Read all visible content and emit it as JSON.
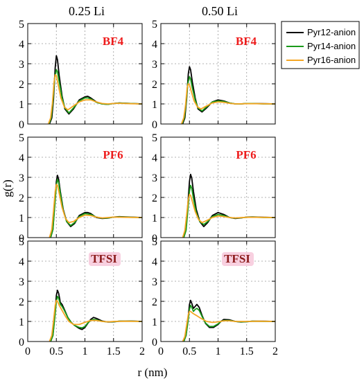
{
  "colors": {
    "Pyr12-anion": "#000000",
    "Pyr14-anion": "#1a9a1a",
    "Pyr16-anion": "#f5a623",
    "tag_red": "#ee1c1c",
    "tag_tfsi": "#8b1a1a",
    "tag_tfsi_bg": "#f8d0e0"
  },
  "chart_data": {
    "type": "line",
    "columns": [
      "0.25 Li",
      "0.50 Li"
    ],
    "ylabel": "g(r)",
    "xlabel": "r (nm)",
    "xlim": [
      0,
      2
    ],
    "ylim": [
      0,
      5
    ],
    "xticks": [
      0,
      0.5,
      1,
      1.5,
      2
    ],
    "xtick_labels": [
      "0",
      "0.5",
      "1",
      "1.5",
      "2"
    ],
    "yticks": [
      0,
      1,
      2,
      3,
      4,
      5
    ],
    "ytick_labels": [
      "0",
      "1",
      "2",
      "3",
      "4",
      "5"
    ],
    "grid": true,
    "legend_position": "top-right",
    "legend": [
      "Pyr12-anion",
      "Pyr14-anion",
      "Pyr16-anion"
    ],
    "panels": [
      {
        "row": 0,
        "col": 0,
        "label": "BF4",
        "series": [
          {
            "name": "Pyr12-anion",
            "x": [
              0.38,
              0.42,
              0.45,
              0.48,
              0.5,
              0.52,
              0.55,
              0.6,
              0.65,
              0.72,
              0.8,
              0.9,
              1.0,
              1.05,
              1.1,
              1.2,
              1.3,
              1.4,
              1.5,
              1.6,
              1.8,
              2.0
            ],
            "y": [
              0,
              0.3,
              1.2,
              2.8,
              3.4,
              3.2,
              2.4,
              1.4,
              0.75,
              0.5,
              0.75,
              1.2,
              1.35,
              1.38,
              1.3,
              1.1,
              1.0,
              0.98,
              1.02,
              1.05,
              1.02,
              1.0
            ]
          },
          {
            "name": "Pyr14-anion",
            "x": [
              0.37,
              0.41,
              0.44,
              0.47,
              0.5,
              0.52,
              0.55,
              0.6,
              0.65,
              0.72,
              0.8,
              0.9,
              1.0,
              1.05,
              1.1,
              1.2,
              1.3,
              1.4,
              1.5,
              1.6,
              1.8,
              2.0
            ],
            "y": [
              0,
              0.3,
              1.1,
              2.3,
              2.7,
              2.6,
              2.1,
              1.3,
              0.8,
              0.55,
              0.8,
              1.15,
              1.3,
              1.3,
              1.25,
              1.08,
              1.0,
              0.98,
              1.02,
              1.04,
              1.02,
              1.0
            ]
          },
          {
            "name": "Pyr16-anion",
            "x": [
              0.36,
              0.4,
              0.43,
              0.46,
              0.48,
              0.5,
              0.53,
              0.58,
              0.64,
              0.7,
              0.8,
              0.9,
              1.0,
              1.1,
              1.2,
              1.3,
              1.4,
              1.5,
              1.6,
              1.8,
              2.0
            ],
            "y": [
              0,
              0.3,
              1.0,
              2.1,
              2.45,
              2.4,
              2.0,
              1.3,
              0.85,
              0.7,
              0.9,
              1.1,
              1.2,
              1.2,
              1.1,
              1.02,
              1.0,
              1.02,
              1.03,
              1.01,
              1.0
            ]
          }
        ]
      },
      {
        "row": 0,
        "col": 1,
        "label": "BF4",
        "series": [
          {
            "name": "Pyr12-anion",
            "x": [
              0.38,
              0.42,
              0.45,
              0.48,
              0.5,
              0.52,
              0.55,
              0.6,
              0.65,
              0.72,
              0.8,
              0.9,
              1.0,
              1.1,
              1.2,
              1.3,
              1.4,
              1.5,
              1.6,
              1.8,
              2.0
            ],
            "y": [
              0,
              0.3,
              1.2,
              2.5,
              2.85,
              2.7,
              2.1,
              1.3,
              0.75,
              0.6,
              0.8,
              1.1,
              1.2,
              1.15,
              1.05,
              1.0,
              1.0,
              1.02,
              1.02,
              1.01,
              1.0
            ]
          },
          {
            "name": "Pyr14-anion",
            "x": [
              0.37,
              0.41,
              0.44,
              0.47,
              0.5,
              0.52,
              0.55,
              0.6,
              0.65,
              0.72,
              0.8,
              0.9,
              1.0,
              1.1,
              1.2,
              1.3,
              1.4,
              1.5,
              1.6,
              1.8,
              2.0
            ],
            "y": [
              0,
              0.3,
              1.0,
              2.0,
              2.35,
              2.25,
              1.8,
              1.2,
              0.8,
              0.65,
              0.85,
              1.1,
              1.15,
              1.12,
              1.05,
              1.0,
              1.0,
              1.02,
              1.02,
              1.0,
              1.0
            ]
          },
          {
            "name": "Pyr16-anion",
            "x": [
              0.36,
              0.4,
              0.43,
              0.46,
              0.48,
              0.5,
              0.53,
              0.58,
              0.64,
              0.7,
              0.8,
              0.9,
              1.0,
              1.1,
              1.2,
              1.3,
              1.5,
              1.7,
              2.0
            ],
            "y": [
              0,
              0.3,
              0.9,
              1.8,
              2.0,
              1.95,
              1.65,
              1.15,
              0.85,
              0.75,
              0.9,
              1.05,
              1.1,
              1.08,
              1.03,
              1.0,
              1.01,
              1.01,
              1.0
            ]
          }
        ]
      },
      {
        "row": 1,
        "col": 0,
        "label": "PF6",
        "series": [
          {
            "name": "Pyr12-anion",
            "x": [
              0.4,
              0.44,
              0.47,
              0.5,
              0.52,
              0.54,
              0.57,
              0.62,
              0.68,
              0.75,
              0.82,
              0.9,
              1.0,
              1.05,
              1.1,
              1.2,
              1.3,
              1.4,
              1.5,
              1.6,
              1.8,
              2.0
            ],
            "y": [
              0,
              0.4,
              1.6,
              2.8,
              3.1,
              2.9,
              2.3,
              1.4,
              0.8,
              0.55,
              0.7,
              1.1,
              1.25,
              1.25,
              1.2,
              1.0,
              0.95,
              0.97,
              1.02,
              1.04,
              1.02,
              1.0
            ]
          },
          {
            "name": "Pyr14-anion",
            "x": [
              0.4,
              0.44,
              0.47,
              0.5,
              0.52,
              0.54,
              0.57,
              0.62,
              0.68,
              0.75,
              0.82,
              0.9,
              1.0,
              1.1,
              1.2,
              1.3,
              1.4,
              1.5,
              1.6,
              1.8,
              2.0
            ],
            "y": [
              0,
              0.4,
              1.5,
              2.6,
              2.9,
              2.75,
              2.2,
              1.35,
              0.8,
              0.6,
              0.75,
              1.05,
              1.2,
              1.15,
              1.02,
              0.97,
              0.98,
              1.02,
              1.03,
              1.01,
              1.0
            ]
          },
          {
            "name": "Pyr16-anion",
            "x": [
              0.38,
              0.42,
              0.45,
              0.48,
              0.5,
              0.52,
              0.55,
              0.6,
              0.66,
              0.72,
              0.8,
              0.9,
              1.0,
              1.1,
              1.2,
              1.3,
              1.4,
              1.5,
              1.7,
              2.0
            ],
            "y": [
              0,
              0.4,
              1.3,
              2.3,
              2.65,
              2.6,
              2.2,
              1.5,
              0.95,
              0.75,
              0.8,
              1.0,
              1.12,
              1.1,
              1.02,
              0.98,
              1.0,
              1.02,
              1.01,
              1.0
            ]
          }
        ]
      },
      {
        "row": 1,
        "col": 1,
        "label": "PF6",
        "series": [
          {
            "name": "Pyr12-anion",
            "x": [
              0.4,
              0.44,
              0.47,
              0.5,
              0.52,
              0.54,
              0.57,
              0.62,
              0.68,
              0.75,
              0.82,
              0.9,
              1.0,
              1.1,
              1.2,
              1.3,
              1.4,
              1.5,
              1.6,
              1.8,
              2.0
            ],
            "y": [
              0,
              0.4,
              1.6,
              2.8,
              3.15,
              2.95,
              2.3,
              1.4,
              0.8,
              0.55,
              0.75,
              1.1,
              1.25,
              1.15,
              1.0,
              0.95,
              0.98,
              1.02,
              1.03,
              1.01,
              1.0
            ]
          },
          {
            "name": "Pyr14-anion",
            "x": [
              0.4,
              0.44,
              0.47,
              0.5,
              0.52,
              0.54,
              0.57,
              0.62,
              0.68,
              0.75,
              0.82,
              0.9,
              1.0,
              1.1,
              1.2,
              1.3,
              1.4,
              1.5,
              1.6,
              1.8,
              2.0
            ],
            "y": [
              0,
              0.35,
              1.3,
              2.3,
              2.6,
              2.45,
              1.95,
              1.25,
              0.8,
              0.65,
              0.8,
              1.05,
              1.15,
              1.1,
              1.0,
              0.97,
              0.99,
              1.01,
              1.02,
              1.0,
              1.0
            ]
          },
          {
            "name": "Pyr16-anion",
            "x": [
              0.38,
              0.42,
              0.45,
              0.48,
              0.5,
              0.52,
              0.55,
              0.6,
              0.66,
              0.72,
              0.8,
              0.9,
              1.0,
              1.1,
              1.2,
              1.3,
              1.5,
              1.7,
              2.0
            ],
            "y": [
              0,
              0.35,
              1.1,
              1.9,
              2.15,
              2.1,
              1.8,
              1.3,
              0.9,
              0.75,
              0.85,
              1.0,
              1.08,
              1.05,
              1.0,
              0.98,
              1.01,
              1.01,
              1.0
            ]
          }
        ]
      },
      {
        "row": 2,
        "col": 0,
        "label": "TFSI",
        "series": [
          {
            "name": "Pyr12-anion",
            "x": [
              0.4,
              0.44,
              0.47,
              0.5,
              0.52,
              0.54,
              0.57,
              0.6,
              0.64,
              0.7,
              0.76,
              0.82,
              0.9,
              0.95,
              1.0,
              1.05,
              1.1,
              1.15,
              1.2,
              1.3,
              1.4,
              1.5,
              1.6,
              1.8,
              2.0
            ],
            "y": [
              0,
              0.3,
              1.2,
              2.3,
              2.55,
              2.4,
              1.95,
              1.85,
              1.6,
              1.2,
              0.95,
              0.8,
              0.65,
              0.6,
              0.7,
              0.9,
              1.1,
              1.2,
              1.15,
              1.02,
              0.97,
              0.98,
              1.01,
              1.02,
              1.0
            ]
          },
          {
            "name": "Pyr14-anion",
            "x": [
              0.4,
              0.44,
              0.47,
              0.5,
              0.52,
              0.54,
              0.57,
              0.6,
              0.64,
              0.7,
              0.76,
              0.82,
              0.9,
              0.95,
              1.0,
              1.05,
              1.1,
              1.15,
              1.2,
              1.3,
              1.4,
              1.5,
              1.6,
              1.8,
              2.0
            ],
            "y": [
              0,
              0.3,
              1.1,
              2.0,
              2.25,
              2.15,
              1.85,
              1.75,
              1.55,
              1.2,
              0.95,
              0.8,
              0.7,
              0.68,
              0.75,
              0.92,
              1.05,
              1.1,
              1.08,
              1.0,
              0.98,
              0.99,
              1.01,
              1.01,
              1.0
            ]
          },
          {
            "name": "Pyr16-anion",
            "x": [
              0.38,
              0.42,
              0.45,
              0.48,
              0.5,
              0.52,
              0.55,
              0.6,
              0.66,
              0.72,
              0.8,
              0.9,
              1.0,
              1.1,
              1.2,
              1.3,
              1.4,
              1.5,
              1.7,
              2.0
            ],
            "y": [
              0,
              0.3,
              1.0,
              1.8,
              2.05,
              2.0,
              1.8,
              1.55,
              1.25,
              1.0,
              0.85,
              0.85,
              0.95,
              1.05,
              1.05,
              1.0,
              0.98,
              1.0,
              1.01,
              1.0
            ]
          }
        ]
      },
      {
        "row": 2,
        "col": 1,
        "label": "TFSI",
        "series": [
          {
            "name": "Pyr12-anion",
            "x": [
              0.4,
              0.44,
              0.47,
              0.5,
              0.52,
              0.54,
              0.57,
              0.6,
              0.63,
              0.67,
              0.72,
              0.78,
              0.85,
              0.92,
              1.0,
              1.05,
              1.1,
              1.2,
              1.3,
              1.4,
              1.5,
              1.6,
              1.8,
              2.0
            ],
            "y": [
              0,
              0.3,
              1.0,
              1.85,
              2.05,
              1.9,
              1.65,
              1.75,
              1.85,
              1.7,
              1.3,
              0.9,
              0.7,
              0.7,
              0.85,
              1.0,
              1.1,
              1.08,
              1.0,
              0.97,
              0.99,
              1.01,
              1.01,
              1.0
            ]
          },
          {
            "name": "Pyr14-anion",
            "x": [
              0.4,
              0.44,
              0.47,
              0.5,
              0.52,
              0.54,
              0.57,
              0.6,
              0.63,
              0.67,
              0.72,
              0.78,
              0.85,
              0.92,
              1.0,
              1.05,
              1.1,
              1.2,
              1.3,
              1.4,
              1.5,
              1.6,
              1.8,
              2.0
            ],
            "y": [
              0,
              0.3,
              0.9,
              1.6,
              1.8,
              1.7,
              1.5,
              1.6,
              1.65,
              1.55,
              1.25,
              0.92,
              0.75,
              0.75,
              0.88,
              1.0,
              1.05,
              1.05,
              1.0,
              0.98,
              0.99,
              1.01,
              1.0,
              1.0
            ]
          },
          {
            "name": "Pyr16-anion",
            "x": [
              0.38,
              0.42,
              0.45,
              0.48,
              0.5,
              0.52,
              0.56,
              0.62,
              0.7,
              0.8,
              0.9,
              1.0,
              1.1,
              1.2,
              1.3,
              1.5,
              1.7,
              2.0
            ],
            "y": [
              0,
              0.25,
              0.8,
              1.35,
              1.5,
              1.5,
              1.4,
              1.3,
              1.15,
              1.0,
              0.95,
              0.98,
              1.03,
              1.03,
              1.0,
              1.0,
              1.01,
              1.0
            ]
          }
        ]
      }
    ]
  }
}
